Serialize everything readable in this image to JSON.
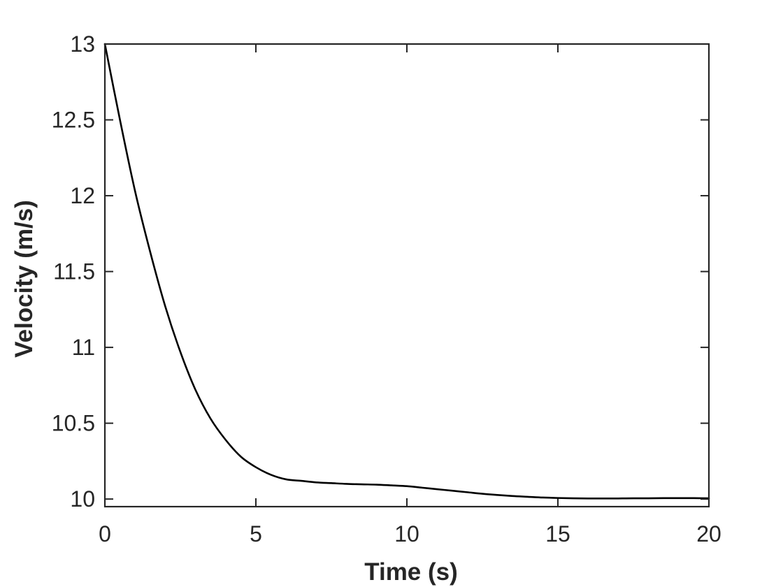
{
  "chart_data": {
    "type": "line",
    "title": "",
    "xlabel": "Time (s)",
    "ylabel": "Velocity (m/s)",
    "xlim": [
      0,
      20
    ],
    "ylim": [
      9.95,
      13
    ],
    "xticks": [
      0,
      5,
      10,
      15,
      20
    ],
    "xtick_labels": [
      "0",
      "5",
      "10",
      "15",
      "20"
    ],
    "yticks": [
      10,
      10.5,
      11,
      11.5,
      12,
      12.5,
      13
    ],
    "ytick_labels": [
      "10",
      "10.5",
      "11",
      "11.5",
      "12",
      "12.5",
      "13"
    ],
    "grid": false,
    "box": true,
    "colors": {
      "line": "#000000",
      "axes": "#262626"
    },
    "series": [
      {
        "x": [
          0,
          0.5,
          1,
          1.5,
          2,
          2.5,
          3,
          3.5,
          4,
          4.5,
          5,
          5.5,
          6,
          6.5,
          7,
          7.5,
          8,
          8.5,
          9,
          9.5,
          10,
          10.5,
          11,
          11.5,
          12,
          12.5,
          13,
          13.5,
          14,
          14.5,
          15,
          15.5,
          16,
          16.5,
          17,
          17.5,
          18,
          18.5,
          19,
          19.5,
          20
        ],
        "y": [
          13.0,
          12.5,
          12.03,
          11.63,
          11.27,
          10.97,
          10.72,
          10.53,
          10.39,
          10.28,
          10.21,
          10.16,
          10.13,
          10.12,
          10.11,
          10.105,
          10.1,
          10.097,
          10.095,
          10.09,
          10.085,
          10.075,
          10.065,
          10.055,
          10.045,
          10.035,
          10.027,
          10.02,
          10.015,
          10.01,
          10.007,
          10.005,
          10.004,
          10.004,
          10.004,
          10.005,
          10.005,
          10.006,
          10.006,
          10.006,
          10.005
        ]
      }
    ]
  }
}
